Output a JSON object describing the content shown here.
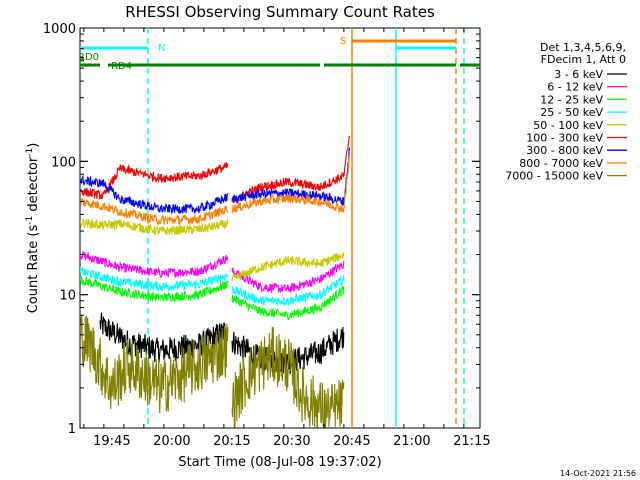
{
  "chart_data": {
    "type": "line",
    "title": "RHESSI Observing Summary Count Rates",
    "xlabel": "Start Time (08-Jul-08 19:37:02)",
    "ylabel": "Count Rate (s",
    "ylabel_sup1": "-1",
    "ylabel_mid": " detector",
    "ylabel_sup2": "-1",
    "ylabel_end": ")",
    "y_scale": "log",
    "ylim": [
      1,
      1000
    ],
    "xlim_minutes": [
      0,
      100
    ],
    "x_ticks": [
      {
        "label": "19:45",
        "minute": 7.97
      },
      {
        "label": "20:00",
        "minute": 22.97
      },
      {
        "label": "20:15",
        "minute": 37.97
      },
      {
        "label": "20:30",
        "minute": 52.97
      },
      {
        "label": "20:45",
        "minute": 67.97
      },
      {
        "label": "21:00",
        "minute": 82.97
      },
      {
        "label": "21:15",
        "minute": 97.97
      }
    ],
    "y_ticks": [
      {
        "label": "1",
        "value": 1
      },
      {
        "label": "10",
        "value": 10
      },
      {
        "label": "100",
        "value": 100
      },
      {
        "label": "1000",
        "value": 1000
      }
    ],
    "legend_header": [
      "Det 1,3,4,5,6,9,",
      "FDecim 1, Att 0"
    ],
    "legend_placement": "right",
    "series": [
      {
        "name": "3 - 6 keV",
        "color": "#000000",
        "segments": [
          [
            [
              5,
              6
            ],
            [
              12,
              4.4
            ],
            [
              20,
              3.8
            ],
            [
              30,
              4.2
            ],
            [
              37,
              5.5
            ]
          ],
          [
            [
              38,
              4.5
            ],
            [
              45,
              3.3
            ],
            [
              52,
              3.1
            ],
            [
              60,
              3.7
            ],
            [
              66,
              5
            ]
          ]
        ]
      },
      {
        "name": "6 - 12 keV",
        "color": "#ff00ff",
        "segments": [
          [
            [
              0,
              20
            ],
            [
              10,
              16
            ],
            [
              20,
              14.5
            ],
            [
              30,
              15
            ],
            [
              37,
              19
            ]
          ],
          [
            [
              38,
              15
            ],
            [
              45,
              11.5
            ],
            [
              52,
              11
            ],
            [
              60,
              13
            ],
            [
              66,
              17
            ]
          ]
        ]
      },
      {
        "name": "12 - 25 keV",
        "color": "#00ff00",
        "segments": [
          [
            [
              0,
              13
            ],
            [
              10,
              10.5
            ],
            [
              20,
              9.5
            ],
            [
              30,
              10
            ],
            [
              37,
              12
            ]
          ],
          [
            [
              38,
              9.5
            ],
            [
              45,
              7.5
            ],
            [
              52,
              7
            ],
            [
              60,
              8
            ],
            [
              66,
              11
            ]
          ]
        ]
      },
      {
        "name": "25 - 50 keV",
        "color": "#00ffff",
        "segments": [
          [
            [
              0,
              15
            ],
            [
              10,
              12.5
            ],
            [
              20,
              11.5
            ],
            [
              30,
              12
            ],
            [
              37,
              14
            ]
          ],
          [
            [
              38,
              11
            ],
            [
              45,
              9
            ],
            [
              52,
              9
            ],
            [
              60,
              10
            ],
            [
              66,
              13
            ]
          ]
        ]
      },
      {
        "name": "50 - 100 keV",
        "color": "#c8c800",
        "segments": [
          [
            [
              0,
              35
            ],
            [
              6,
              33
            ],
            [
              10,
              34
            ],
            [
              20,
              30
            ],
            [
              30,
              31
            ],
            [
              37,
              34
            ]
          ],
          [
            [
              38,
              13
            ],
            [
              45,
              16
            ],
            [
              52,
              18
            ],
            [
              60,
              17
            ],
            [
              66,
              20
            ]
          ]
        ]
      },
      {
        "name": "100 - 300 keV",
        "color": "#ff0000",
        "segments": [
          [
            [
              0,
              60
            ],
            [
              6,
              55
            ],
            [
              10,
              88
            ],
            [
              20,
              75
            ],
            [
              30,
              78
            ],
            [
              37,
              92
            ]
          ],
          [
            [
              38,
              50
            ],
            [
              45,
              64
            ],
            [
              52,
              70
            ],
            [
              60,
              64
            ],
            [
              66,
              78
            ],
            [
              67.5,
              170
            ]
          ]
        ]
      },
      {
        "name": "300 - 800 keV",
        "color": "#0000ff",
        "segments": [
          [
            [
              0,
              72
            ],
            [
              6,
              68
            ],
            [
              10,
              52
            ],
            [
              20,
              44
            ],
            [
              30,
              44
            ],
            [
              37,
              54
            ]
          ],
          [
            [
              38,
              52
            ],
            [
              45,
              57
            ],
            [
              52,
              58
            ],
            [
              60,
              55
            ],
            [
              66,
              50
            ],
            [
              67.5,
              130
            ]
          ]
        ]
      },
      {
        "name": "800 - 7000 keV",
        "color": "#ff8000",
        "segments": [
          [
            [
              0,
              50
            ],
            [
              6,
              46
            ],
            [
              10,
              42
            ],
            [
              20,
              36
            ],
            [
              30,
              37
            ],
            [
              37,
              44
            ]
          ],
          [
            [
              38,
              44
            ],
            [
              45,
              50
            ],
            [
              52,
              53
            ],
            [
              60,
              50
            ],
            [
              66,
              44
            ],
            [
              67.5,
              120
            ]
          ]
        ]
      },
      {
        "name": "7000 - 15000 keV",
        "color": "#808000",
        "segments": [
          [
            [
              0,
              5
            ],
            [
              3,
              4
            ],
            [
              5,
              3
            ],
            [
              8,
              2
            ],
            [
              12,
              3
            ],
            [
              20,
              2
            ],
            [
              30,
              3
            ],
            [
              37,
              4
            ]
          ],
          [
            [
              38,
              1.5
            ],
            [
              42,
              2.5
            ],
            [
              48,
              3.5
            ],
            [
              52,
              3
            ],
            [
              56,
              1.7
            ],
            [
              62,
              1.3
            ],
            [
              66,
              1.5
            ]
          ]
        ]
      }
    ],
    "flags": [
      {
        "label": "RD0",
        "color": "#008000",
        "segments": [
          [
            0,
            1
          ]
        ],
        "level": 1
      },
      {
        "label": "RD4",
        "color": "#008000",
        "segments": [
          [
            0,
            5
          ],
          [
            7,
            40
          ],
          [
            40,
            60
          ],
          [
            61,
            94
          ],
          [
            95,
            100
          ]
        ],
        "level": 2
      },
      {
        "label": "N",
        "color": "#00ffff",
        "segments": [
          [
            0,
            17
          ],
          [
            79,
            94
          ]
        ],
        "level": 3
      },
      {
        "label": "S",
        "color": "#ff8000",
        "segments": [
          [
            68,
            94
          ]
        ],
        "level": 4
      }
    ],
    "vertical_lines": [
      {
        "minute": 17,
        "color": "#00ffff",
        "dashed": true
      },
      {
        "minute": 68,
        "color": "#ff8000",
        "dashed": false
      },
      {
        "minute": 79,
        "color": "#00ffff",
        "dashed": false
      },
      {
        "minute": 94,
        "color": "#ff8000",
        "dashed": true
      },
      {
        "minute": 96,
        "color": "#00ffff",
        "dashed": true
      }
    ]
  },
  "timestamp": "14-Oct-2021 21:56"
}
